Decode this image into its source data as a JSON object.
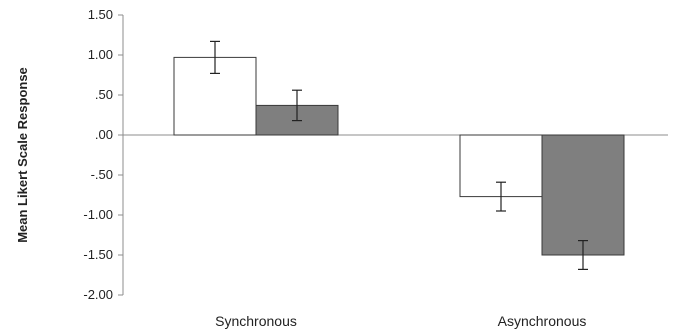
{
  "chart_data": {
    "type": "bar",
    "title": "",
    "xlabel": "",
    "ylabel": "Mean Likert Scale Response",
    "ylim": [
      -2.0,
      1.5
    ],
    "yticks": [
      1.5,
      1.0,
      0.5,
      0.0,
      -0.5,
      -1.0,
      -1.5,
      -2.0
    ],
    "ytick_labels": [
      "1.50",
      "1.00",
      ".50",
      ".00",
      "-.50",
      "-1.00",
      "-1.50",
      "-2.00"
    ],
    "categories": [
      "Synchronous",
      "Asynchronous"
    ],
    "grid": false,
    "legend": false,
    "series": [
      {
        "values": [
          0.97,
          -0.77
        ],
        "error": [
          0.2,
          0.18
        ],
        "color": "#ffffff"
      },
      {
        "values": [
          0.37,
          -1.5
        ],
        "error": [
          0.19,
          0.18
        ],
        "color": "#7f7f7f"
      }
    ]
  }
}
